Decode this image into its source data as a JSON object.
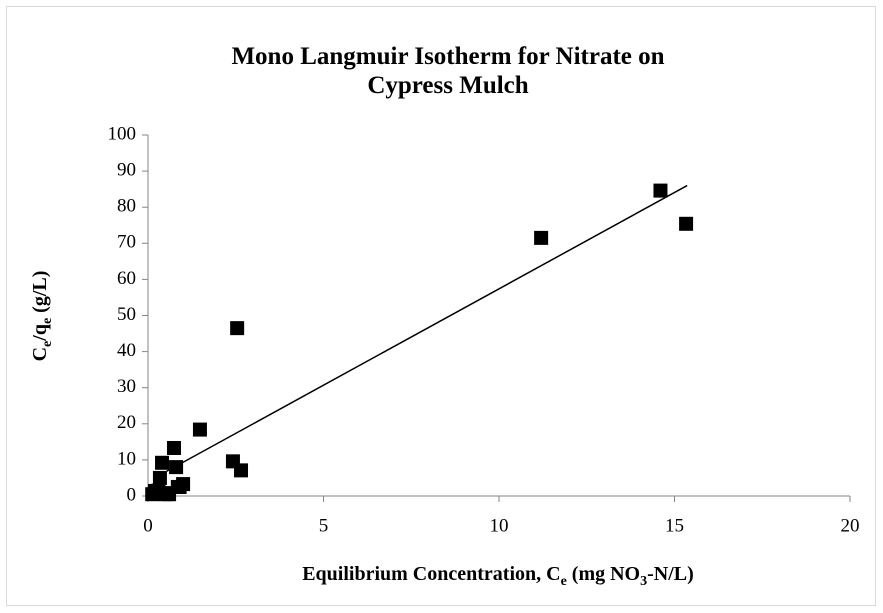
{
  "chart_data": {
    "type": "scatter",
    "title": [
      "Mono Langmuir Isotherm for Nitrate on",
      "Cypress Mulch"
    ],
    "x_label": [
      "Equilibrium Concentration, C",
      "e",
      " (mg NO",
      "3",
      "-N/L)"
    ],
    "y_label": [
      "C",
      "e",
      "/q",
      "e",
      " (g/L)"
    ],
    "xlim": [
      0,
      20
    ],
    "xticks": [
      0,
      5,
      10,
      15,
      20
    ],
    "ylim": [
      0,
      100
    ],
    "yticks": [
      0,
      10,
      20,
      30,
      40,
      50,
      60,
      70,
      80,
      90,
      100
    ],
    "grid": false,
    "series": [
      {
        "color": "#000000",
        "x": [
          0.12,
          0.2,
          0.3,
          0.34,
          0.4,
          0.5,
          0.57,
          0.6,
          0.85,
          0.74,
          0.8,
          0.9,
          1.0,
          1.48,
          2.42,
          2.54,
          2.65,
          11.2,
          14.6,
          15.33
        ],
        "values": [
          0.5,
          1.4,
          1.5,
          5,
          9.2,
          0.5,
          0.8,
          0.5,
          2.5,
          13.3,
          8,
          2.5,
          3.3,
          18.4,
          9.6,
          46.5,
          7.1,
          71.5,
          84.6,
          75.4
        ]
      }
    ],
    "trendline": {
      "color": "#000000",
      "x": [
        0.28,
        15.36
      ],
      "values": [
        5.5,
        86
      ]
    }
  }
}
